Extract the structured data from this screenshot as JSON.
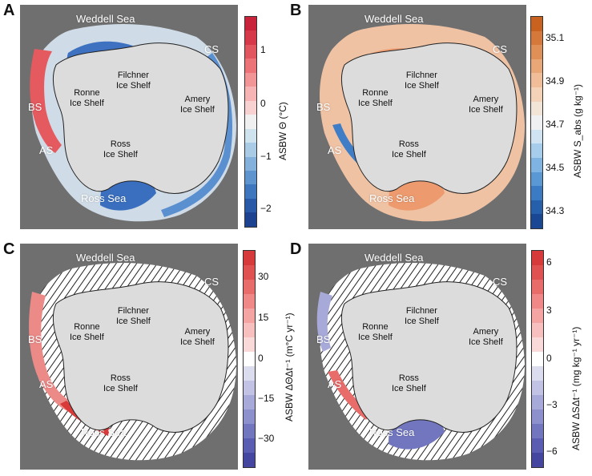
{
  "panels": [
    {
      "letter": "A",
      "regions": {
        "weddell": "Weddell Sea",
        "cs": "CS",
        "bs": "BS",
        "as": "AS",
        "ross_sea": "Ross Sea"
      },
      "shelves": {
        "filchner1": "Filchner",
        "filchner2": "Ice Shelf",
        "ronne1": "Ronne",
        "ronne2": "Ice Shelf",
        "amery1": "Amery",
        "amery2": "Ice Shelf",
        "ross1": "Ross",
        "ross2": "Ice Shelf"
      },
      "colorbar": {
        "title": "ASBW Θ (°C)",
        "ticks": [
          "1",
          "0",
          "−1",
          "−2"
        ],
        "colors": [
          "#c8233a",
          "#d63a4a",
          "#e25660",
          "#ec7478",
          "#f29596",
          "#f6b5b4",
          "#f8d2d0",
          "#f0f0f0",
          "#cfe3ef",
          "#aacbe6",
          "#83b1dc",
          "#5f95cf",
          "#3f77bf",
          "#285aa8",
          "#1c4290"
        ]
      }
    },
    {
      "letter": "B",
      "regions": {
        "weddell": "Weddell Sea",
        "cs": "CS",
        "bs": "BS",
        "as": "AS",
        "ross_sea": "Ross Sea"
      },
      "shelves": {
        "filchner1": "Filchner",
        "filchner2": "Ice Shelf",
        "ronne1": "Ronne",
        "ronne2": "Ice Shelf",
        "amery1": "Amery",
        "amery2": "Ice Shelf",
        "ross1": "Ross",
        "ross2": "Ice Shelf"
      },
      "colorbar": {
        "title": "ASBW S_abs (g kg⁻¹)",
        "ticks": [
          "35.1",
          "34.9",
          "34.7",
          "34.5",
          "34.3"
        ],
        "colors": [
          "#c8621e",
          "#d6783a",
          "#e08f57",
          "#e9a676",
          "#f0bd98",
          "#f4d2b8",
          "#f3e4d8",
          "#eef0f2",
          "#cfe3f2",
          "#a7cdec",
          "#7fb3e2",
          "#5a97d5",
          "#3b7bc4",
          "#2660ad",
          "#1a4793"
        ]
      }
    },
    {
      "letter": "C",
      "regions": {
        "weddell": "Weddell Sea",
        "cs": "CS",
        "bs": "BS",
        "as": "AS",
        "ross_sea": "Ross Sea"
      },
      "shelves": {
        "filchner1": "Filchner",
        "filchner2": "Ice Shelf",
        "ronne1": "Ronne",
        "ronne2": "Ice Shelf",
        "amery1": "Amery",
        "amery2": "Ice Shelf",
        "ross1": "Ross",
        "ross2": "Ice Shelf"
      },
      "colorbar": {
        "title": "ASBW ΔΘΔt⁻¹ (m°C yr⁻¹)",
        "ticks": [
          "30",
          "15",
          "0",
          "−15",
          "−30"
        ],
        "colors": [
          "#d63a3a",
          "#e05252",
          "#e86c6a",
          "#ef8886",
          "#f4a4a2",
          "#f7c0be",
          "#f9dad8",
          "#ffffff",
          "#dcdcef",
          "#c2c3e4",
          "#a7a9d8",
          "#8c90cc",
          "#7176bf",
          "#5a5db1",
          "#4546a0"
        ]
      }
    },
    {
      "letter": "D",
      "regions": {
        "weddell": "Weddell Sea",
        "cs": "CS",
        "bs": "BS",
        "as": "AS",
        "ross_sea": "Ross Sea"
      },
      "shelves": {
        "filchner1": "Filchner",
        "filchner2": "Ice Shelf",
        "ronne1": "Ronne",
        "ronne2": "Ice Shelf",
        "amery1": "Amery",
        "amery2": "Ice Shelf",
        "ross1": "Ross",
        "ross2": "Ice Shelf"
      },
      "colorbar": {
        "title": "ASBW ΔSΔt⁻¹ (mg kg⁻¹ yr⁻¹)",
        "ticks": [
          "6",
          "3",
          "0",
          "−3",
          "−6"
        ],
        "colors": [
          "#d63a3a",
          "#e05252",
          "#e86c6a",
          "#ef8886",
          "#f4a4a2",
          "#f7c0be",
          "#f9dad8",
          "#ffffff",
          "#dcdcef",
          "#c2c3e4",
          "#a7a9d8",
          "#8c90cc",
          "#7176bf",
          "#5a5db1",
          "#4546a0"
        ]
      }
    }
  ]
}
